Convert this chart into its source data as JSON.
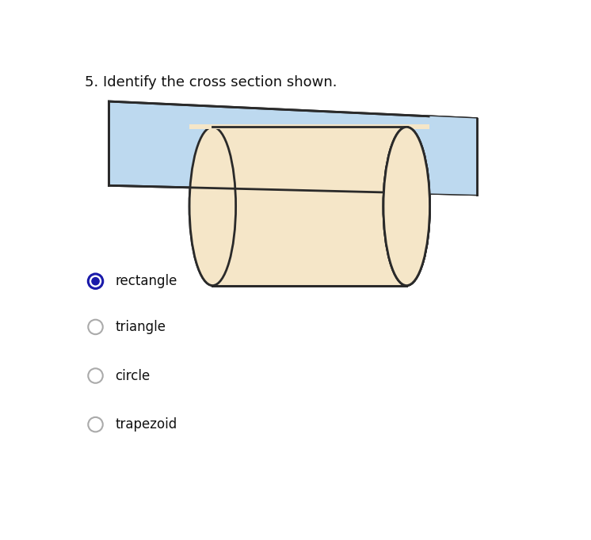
{
  "title_text": "5. Identify the cross section shown.",
  "title_fontsize": 13,
  "cylinder_color": "#F5E6C8",
  "cylinder_edge_color": "#2a2a2a",
  "plane_color": "#BDD9EF",
  "plane_edge_color": "#2a2a2a",
  "options": [
    "rectangle",
    "triangle",
    "circle",
    "trapezoid"
  ],
  "selected": 0,
  "selected_color": "#1a1aaa",
  "unselected_color": "#999999",
  "option_fontsize": 12,
  "background_color": "#ffffff"
}
